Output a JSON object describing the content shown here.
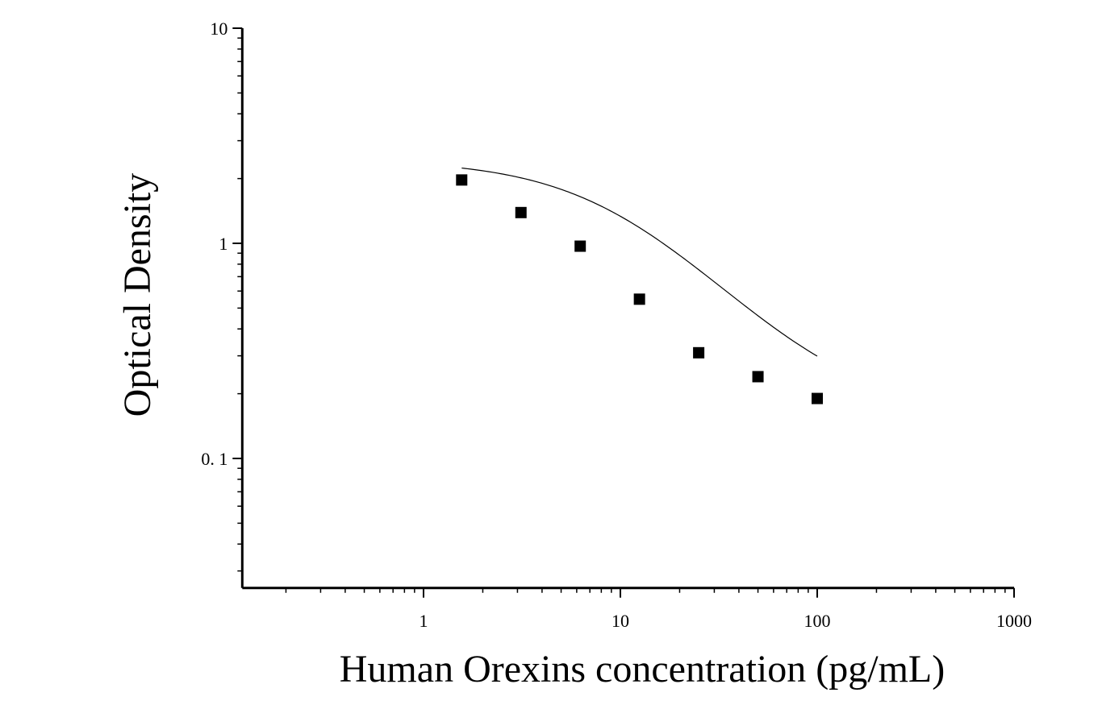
{
  "chart_data": {
    "type": "scatter",
    "title": "",
    "xlabel": "Human Orexins concentration (pg/mL)",
    "ylabel": "Optical Density",
    "x_scale": "log",
    "y_scale": "log",
    "xlim": [
      0.12,
      1000
    ],
    "ylim": [
      0.025,
      10
    ],
    "x_ticks": [
      {
        "value": 1,
        "label": "1"
      },
      {
        "value": 10,
        "label": "10"
      },
      {
        "value": 100,
        "label": "100"
      },
      {
        "value": 1000,
        "label": "1000"
      }
    ],
    "y_ticks": [
      {
        "value": 0.1,
        "label": "0. 1"
      },
      {
        "value": 1,
        "label": "1"
      },
      {
        "value": 10,
        "label": "10"
      }
    ],
    "grid": false,
    "legend": "none",
    "series": [
      {
        "x": [
          1.5625,
          3.125,
          6.25,
          12.5,
          25,
          50,
          100
        ],
        "y": [
          1.97,
          1.39,
          0.97,
          0.55,
          0.31,
          0.24,
          0.19
        ],
        "marker": "square",
        "color": "#000000"
      }
    ],
    "fit_curve": {
      "type": "4PL",
      "a": 2.45,
      "d": 0.155,
      "c": 10.5,
      "b": 1.2,
      "x_range": [
        1.5625,
        100
      ],
      "color": "#000000"
    }
  }
}
